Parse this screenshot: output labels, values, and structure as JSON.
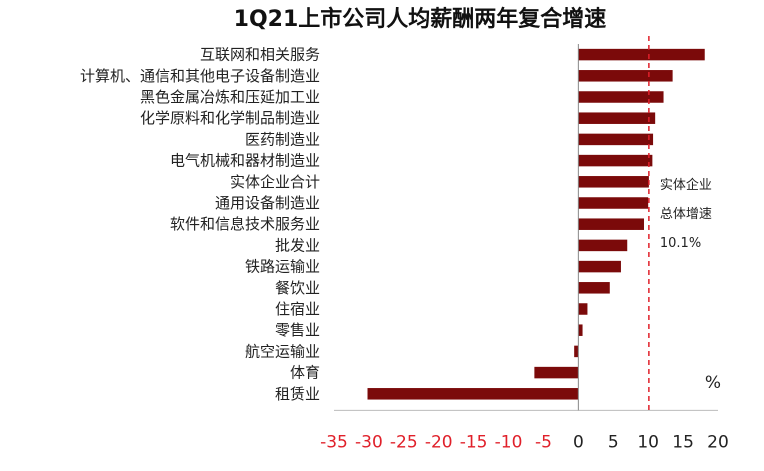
{
  "chart_data": {
    "type": "bar",
    "orientation": "horizontal",
    "title": "1Q21上市公司人均薪酬两年复合增速",
    "unit": "%",
    "categories": [
      "互联网和相关服务",
      "计算机、通信和其他电子设备制造业",
      "黑色金属冶炼和压延加工业",
      "化学原料和化学制品制造业",
      "医药制造业",
      "电气机械和器材制造业",
      "实体企业合计",
      "通用设备制造业",
      "软件和信息技术服务业",
      "批发业",
      "铁路运输业",
      "餐饮业",
      "住宿业",
      "零售业",
      "航空运输业",
      "体育",
      "租赁业"
    ],
    "values": [
      18.1,
      13.5,
      12.2,
      11.0,
      10.7,
      10.6,
      10.1,
      10.0,
      9.4,
      7.0,
      6.1,
      4.5,
      1.3,
      0.6,
      -0.6,
      -6.3,
      -30.2
    ],
    "xlim": [
      -35,
      20
    ],
    "xticks": [
      -35,
      -30,
      -25,
      -20,
      -15,
      -10,
      -5,
      0,
      5,
      10,
      15,
      20
    ],
    "reference_line": {
      "value": 10.1,
      "labels": [
        "实体企业",
        "总体增速",
        "10.1%"
      ]
    },
    "colors": {
      "bar": "#7b0a0a",
      "negative_tick": "#e0202a",
      "positive_tick": "#222222",
      "reference": "#e0202a"
    },
    "grid": false
  }
}
